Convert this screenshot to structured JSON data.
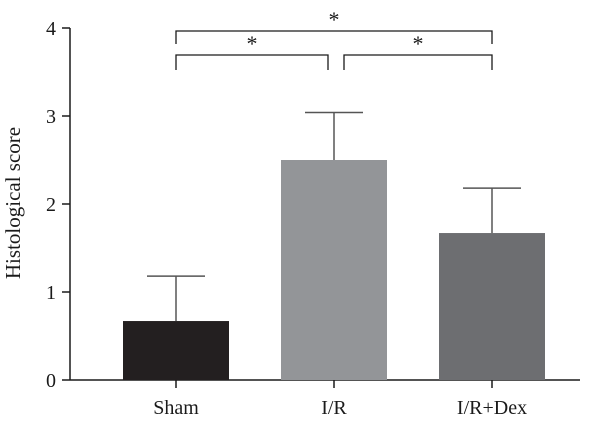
{
  "chart_data": {
    "type": "bar",
    "categories": [
      "Sham",
      "I/R",
      "I/R+Dex"
    ],
    "values": [
      0.67,
      2.5,
      1.67
    ],
    "errors": [
      0.51,
      0.54,
      0.51
    ],
    "colors": [
      "#231f20",
      "#939598",
      "#6d6e71"
    ],
    "ylabel": "Histological score",
    "xlabel": "",
    "title": "",
    "ylim": [
      0,
      4
    ],
    "yticks": [
      0,
      1,
      2,
      3,
      4
    ],
    "grid": false,
    "legend": false,
    "significance": [
      {
        "from": 0,
        "to": 1,
        "label": "*"
      },
      {
        "from": 1,
        "to": 2,
        "label": "*"
      },
      {
        "from": 0,
        "to": 2,
        "label": "*"
      }
    ]
  }
}
